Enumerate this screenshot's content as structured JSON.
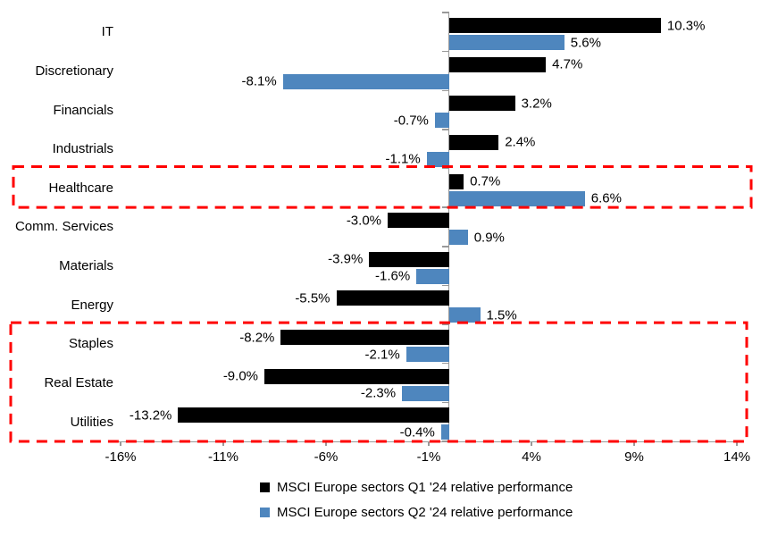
{
  "chart_data": {
    "type": "bar",
    "orientation": "horizontal",
    "title": "",
    "grid": false,
    "legend_position": "bottom",
    "value_label_suffix": "%",
    "categories": [
      "IT",
      "Discretionary",
      "Financials",
      "Industrials",
      "Healthcare",
      "Comm. Services",
      "Materials",
      "Energy",
      "Staples",
      "Real Estate",
      "Utilities"
    ],
    "series": [
      {
        "name": "MSCI Europe sectors Q1 '24 relative performance",
        "color": "#000000",
        "values": [
          10.3,
          4.7,
          3.2,
          2.4,
          0.7,
          -3.0,
          -3.9,
          -5.5,
          -8.2,
          -9.0,
          -13.2
        ]
      },
      {
        "name": "MSCI Europe sectors Q2 '24 relative performance",
        "color": "#4E86BE",
        "values": [
          5.6,
          -8.1,
          -0.7,
          -1.1,
          6.6,
          0.9,
          -1.6,
          1.5,
          -2.1,
          -2.3,
          -0.4
        ]
      }
    ],
    "x_axis": {
      "min": -16,
      "max": 14,
      "tick_values": [
        -16,
        -11,
        -6,
        -1,
        4,
        9,
        14
      ],
      "tick_labels": [
        "-16%",
        "-11%",
        "-6%",
        "-1%",
        "4%",
        "9%",
        "14%"
      ]
    },
    "highlights": [
      {
        "categories": [
          "Healthcare"
        ],
        "rows": [
          4
        ],
        "color": "#FF0000",
        "style": "dashed"
      },
      {
        "categories": [
          "Staples",
          "Real Estate",
          "Utilities"
        ],
        "rows": [
          8,
          9,
          10
        ],
        "color": "#FF0000",
        "style": "dashed"
      }
    ]
  },
  "colors": {
    "background": "#FFFFFF",
    "axis": "#999999",
    "q1_series": "#000000",
    "q2_series": "#4E86BE",
    "highlight": "#FF0000",
    "text": "#000000"
  }
}
